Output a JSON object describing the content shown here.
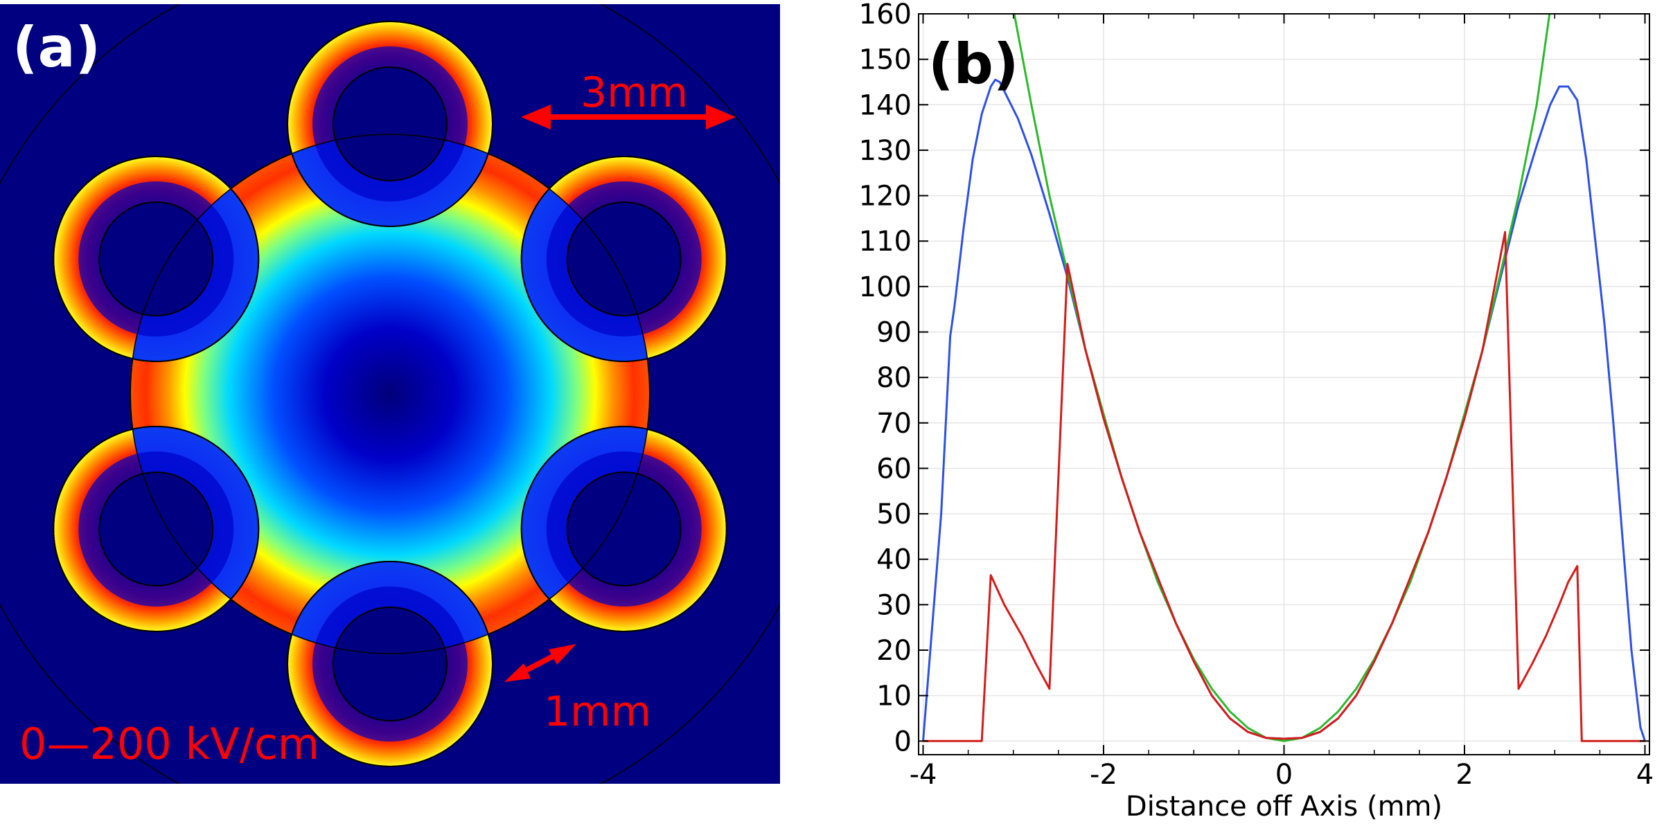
{
  "panel_a": {
    "label": "(a)",
    "scale_label": "0—200 kV/cm",
    "dim_3mm": "3mm",
    "dim_1mm": "1mm",
    "colors": {
      "background": "#000080",
      "arrow": "#ff0000",
      "colormap": [
        "#00007f",
        "#0000ff",
        "#00ffff",
        "#ffff00",
        "#ff0000",
        "#7f0000"
      ]
    }
  },
  "chart_data": {
    "type": "line",
    "panel_label": "(b)",
    "title": "",
    "xlabel": "Distance off Axis (mm)",
    "ylabel": "",
    "xlim": [
      -4.05,
      4.05
    ],
    "ylim": [
      -3,
      160
    ],
    "xticks": [
      -4,
      -2,
      0,
      2,
      4
    ],
    "yticks": [
      0,
      10,
      20,
      30,
      40,
      50,
      60,
      70,
      80,
      90,
      100,
      110,
      120,
      130,
      140,
      150,
      160
    ],
    "grid": true,
    "legend": "none",
    "series": [
      {
        "color": "#2d4fe6",
        "x": [
          -4.0,
          -3.8,
          -3.7,
          -3.65,
          -3.55,
          -3.45,
          -3.35,
          -3.25,
          -3.2,
          -3.15,
          -3.05,
          -2.95,
          -2.8,
          -2.6,
          -2.4,
          -2.2,
          -2.0,
          -1.8,
          -1.6,
          -1.4,
          -1.2,
          -1.0,
          -0.8,
          -0.6,
          -0.4,
          -0.2,
          0.0,
          0.2,
          0.4,
          0.6,
          0.8,
          1.0,
          1.2,
          1.4,
          1.6,
          1.8,
          2.0,
          2.2,
          2.4,
          2.6,
          2.8,
          2.95,
          3.05,
          3.15,
          3.25,
          3.35,
          3.45,
          3.55,
          3.65,
          3.75,
          3.85,
          3.95,
          4.0
        ],
        "values": [
          0,
          50,
          89,
          96,
          113,
          128,
          138,
          144,
          145.5,
          145,
          141,
          137,
          129,
          116,
          102,
          86,
          71,
          58,
          46,
          36,
          26,
          17.5,
          10,
          5,
          2,
          0.7,
          0.5,
          0.7,
          2,
          5,
          10,
          17.5,
          26,
          36,
          46,
          58,
          71,
          86,
          102,
          118,
          131,
          140,
          144,
          144,
          141,
          128,
          110,
          92,
          70,
          45,
          20,
          3,
          0
        ]
      },
      {
        "color": "#2cb82c",
        "x": [
          -3.0,
          -2.8,
          -2.6,
          -2.4,
          -2.2,
          -2.0,
          -1.8,
          -1.6,
          -1.4,
          -1.2,
          -1.0,
          -0.8,
          -0.6,
          -0.4,
          -0.2,
          0.0,
          0.2,
          0.4,
          0.6,
          0.8,
          1.0,
          1.2,
          1.4,
          1.6,
          1.8,
          2.0,
          2.2,
          2.4,
          2.6,
          2.8,
          2.95
        ],
        "values": [
          161,
          140,
          120,
          103,
          86,
          72,
          58,
          46,
          35,
          26,
          18,
          11.5,
          6.5,
          2.9,
          0.7,
          0,
          0.7,
          2.9,
          6.5,
          11.5,
          18,
          26,
          35,
          46,
          58,
          72,
          86,
          103,
          120,
          140,
          161
        ]
      },
      {
        "color": "#d41b1b",
        "x": [
          -4.0,
          -3.35,
          -3.25,
          -3.1,
          -2.9,
          -2.75,
          -2.6,
          -2.4,
          -2.2,
          -2.0,
          -1.8,
          -1.6,
          -1.4,
          -1.2,
          -1.0,
          -0.8,
          -0.6,
          -0.4,
          -0.2,
          0.0,
          0.2,
          0.4,
          0.6,
          0.8,
          1.0,
          1.2,
          1.4,
          1.6,
          1.8,
          2.0,
          2.2,
          2.45,
          2.6,
          2.75,
          2.9,
          3.05,
          3.15,
          3.25,
          3.3,
          3.5,
          4.0
        ],
        "values": [
          0,
          0,
          36.5,
          30,
          23,
          17,
          11.5,
          105,
          86,
          71,
          58,
          46,
          36,
          26,
          17.5,
          10,
          5,
          2,
          0.7,
          0.5,
          0.7,
          2,
          5,
          10,
          17.5,
          26,
          36,
          46,
          58,
          71,
          86,
          112,
          11.5,
          17,
          23,
          30,
          35,
          38.5,
          0,
          0,
          0
        ]
      }
    ]
  }
}
